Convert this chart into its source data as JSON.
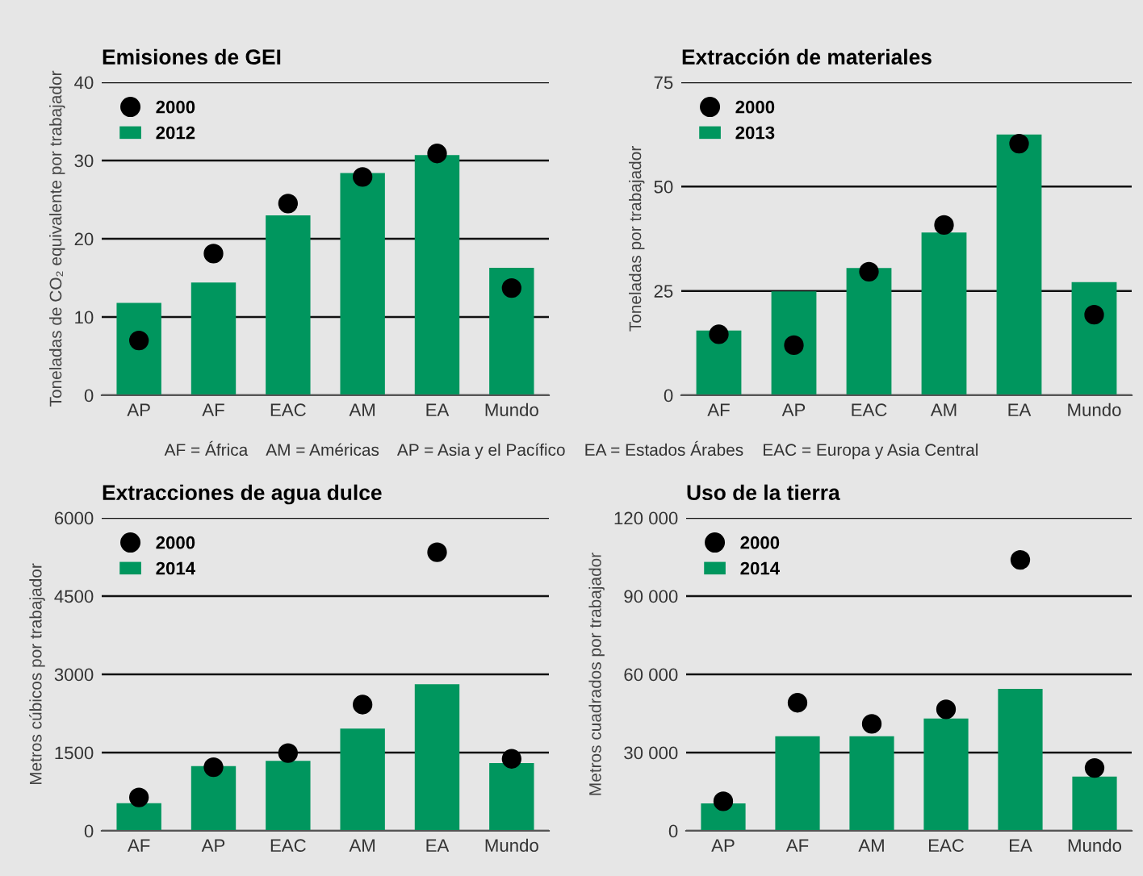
{
  "chart_data": [
    {
      "type": "bar",
      "title": "Emisiones de GEI",
      "ylabel": "Toneladas de CO₂ equivalente por trabajador",
      "categories": [
        "AP",
        "AF",
        "EAC",
        "AM",
        "EA",
        "Mundo"
      ],
      "series": [
        {
          "name": "2000",
          "type": "scatter",
          "color": "#000000",
          "values": [
            7.0,
            18.1,
            24.5,
            27.9,
            30.9,
            13.7
          ]
        },
        {
          "name": "2012",
          "color": "#00965e",
          "values": [
            11.8,
            14.4,
            23.0,
            28.4,
            30.7,
            16.3
          ]
        }
      ],
      "ylim": [
        0,
        40
      ],
      "yticks": [
        0,
        10,
        20,
        30,
        40
      ],
      "grid": "y",
      "legend": "top left",
      "marker": "circle",
      "annotations": [
        "AF = África    AM = Américas    AP = Asia y el Pacífico    EA = Estados Árabes    EAC = Europa y Asia Central"
      ]
    },
    {
      "type": "bar",
      "title": "Extracción de materiales",
      "ylabel": "Toneladas por trabajador",
      "categories": [
        "AF",
        "AP",
        "EAC",
        "AM",
        "EA",
        "Mundo"
      ],
      "series": [
        {
          "name": "2000",
          "type": "scatter",
          "color": "#000000",
          "values": [
            14.6,
            12.0,
            29.6,
            40.8,
            60.3,
            19.3
          ]
        },
        {
          "name": "2013",
          "color": "#00965e",
          "values": [
            15.5,
            24.9,
            30.5,
            39.0,
            62.5,
            27.1
          ]
        }
      ],
      "ylim": [
        0,
        75
      ],
      "yticks": [
        0,
        25,
        50,
        75
      ],
      "grid": "y",
      "legend": "top left",
      "marker": "circle"
    },
    {
      "type": "bar",
      "title": "Extracciones de agua dulce",
      "ylabel": "Metros cúbicos por trabajador",
      "categories": [
        "AF",
        "AP",
        "EAC",
        "AM",
        "EA",
        "Mundo"
      ],
      "series": [
        {
          "name": "2000",
          "type": "scatter",
          "color": "#000000",
          "values": [
            640,
            1220,
            1490,
            2420,
            5340,
            1380
          ]
        },
        {
          "name": "2014",
          "color": "#00965e",
          "values": [
            530,
            1240,
            1340,
            1960,
            2810,
            1300
          ]
        }
      ],
      "ylim": [
        0,
        6000
      ],
      "yticks": [
        0,
        1500,
        3000,
        4500,
        6000
      ],
      "grid": "y",
      "legend": "top left",
      "marker": "circle"
    },
    {
      "type": "bar",
      "title": "Uso de la tierra",
      "ylabel": "Metros cuadrados por trabajador",
      "categories": [
        "AP",
        "AF",
        "AM",
        "EAC",
        "EA",
        "Mundo"
      ],
      "series": [
        {
          "name": "2000",
          "type": "scatter",
          "color": "#000000",
          "values": [
            11300,
            49100,
            41000,
            46600,
            103900,
            24100
          ]
        },
        {
          "name": "2014",
          "color": "#00965e",
          "values": [
            10500,
            36300,
            36300,
            43100,
            54400,
            20800
          ]
        }
      ],
      "ylim": [
        0,
        120000
      ],
      "yticks": [
        0,
        {
          "value": 30000,
          "label": "30 000"
        },
        {
          "value": 60000,
          "label": "60 000"
        },
        {
          "value": 90000,
          "label": "90 000"
        },
        {
          "value": 120000,
          "label": "120 000"
        }
      ],
      "grid": "y",
      "legend": "top left",
      "marker": "circle"
    }
  ]
}
